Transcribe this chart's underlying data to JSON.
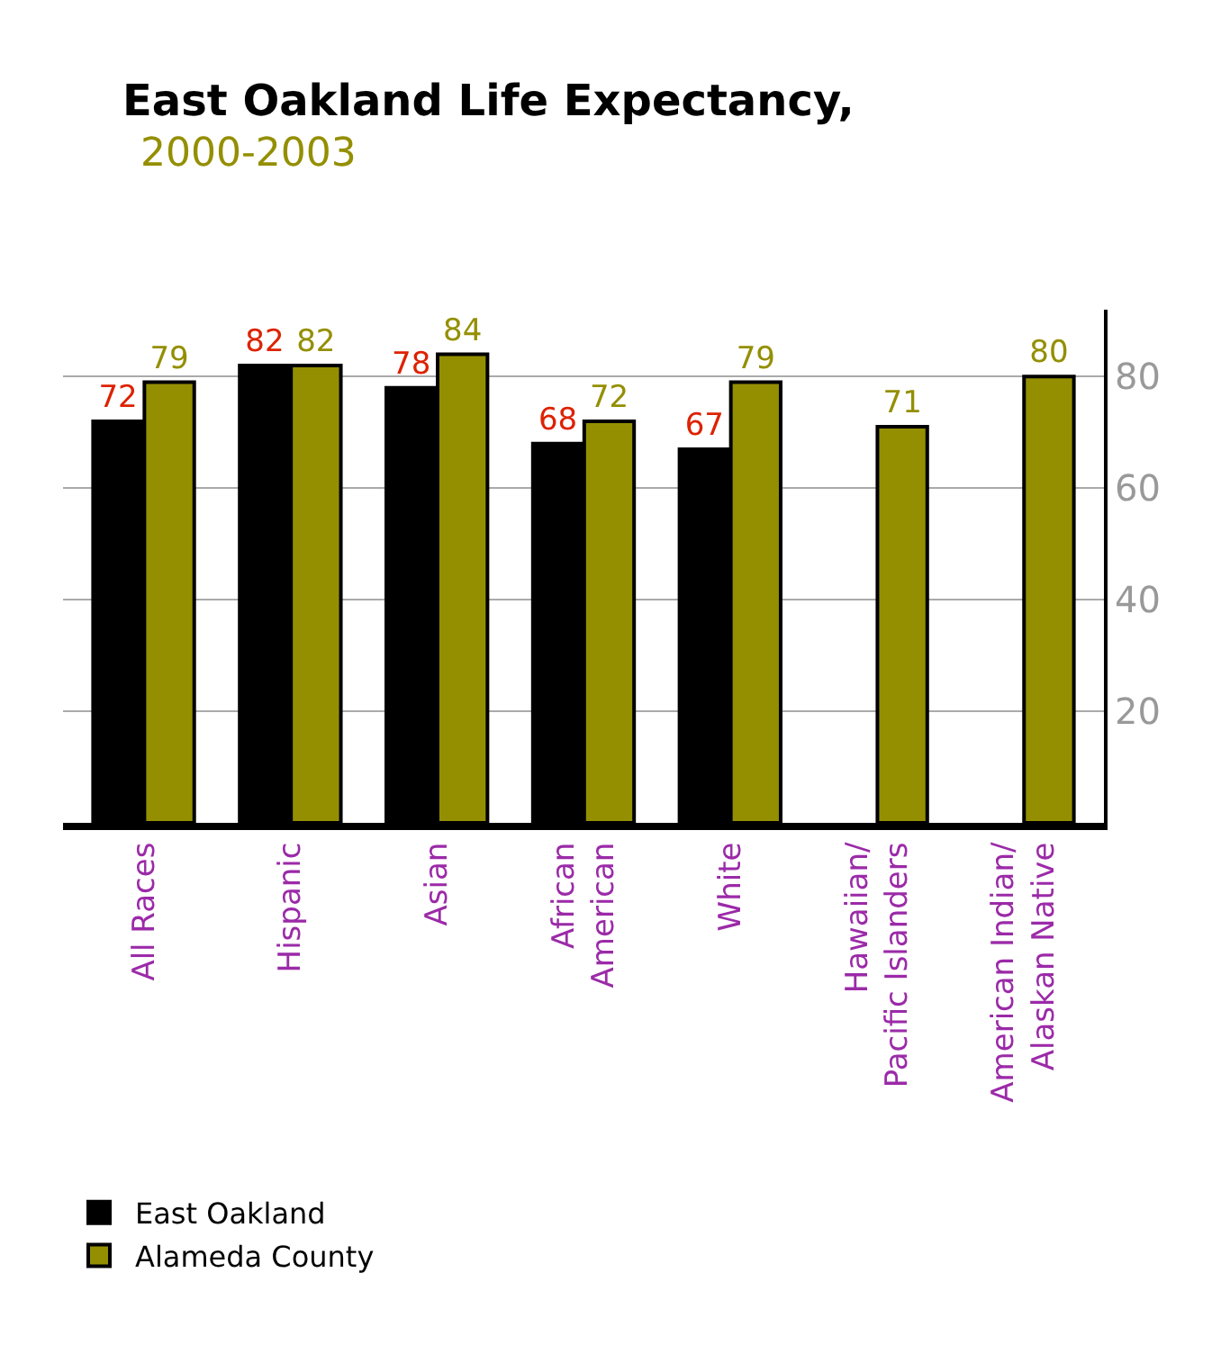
{
  "chart_data": {
    "type": "bar",
    "title": "East Oakland Life Expectancy,",
    "subtitle": "2000-2003",
    "categories": [
      "All Races",
      "Hispanic",
      "Asian",
      "African\nAmerican",
      "White",
      "Hawaiian/\nPacific Islanders",
      "American Indian/\nAlaskan Native"
    ],
    "series": [
      {
        "name": "East Oakland",
        "color": "#000000",
        "values": [
          72,
          82,
          78,
          68,
          67,
          null,
          null
        ]
      },
      {
        "name": "Alameda County",
        "color": "#948f00",
        "values": [
          79,
          82,
          84,
          72,
          79,
          71,
          80
        ]
      }
    ],
    "ylim": [
      0,
      92
    ],
    "yticks": [
      20,
      40,
      60,
      80
    ],
    "grid": "y",
    "data_labels": true,
    "legend": "bottom left"
  }
}
